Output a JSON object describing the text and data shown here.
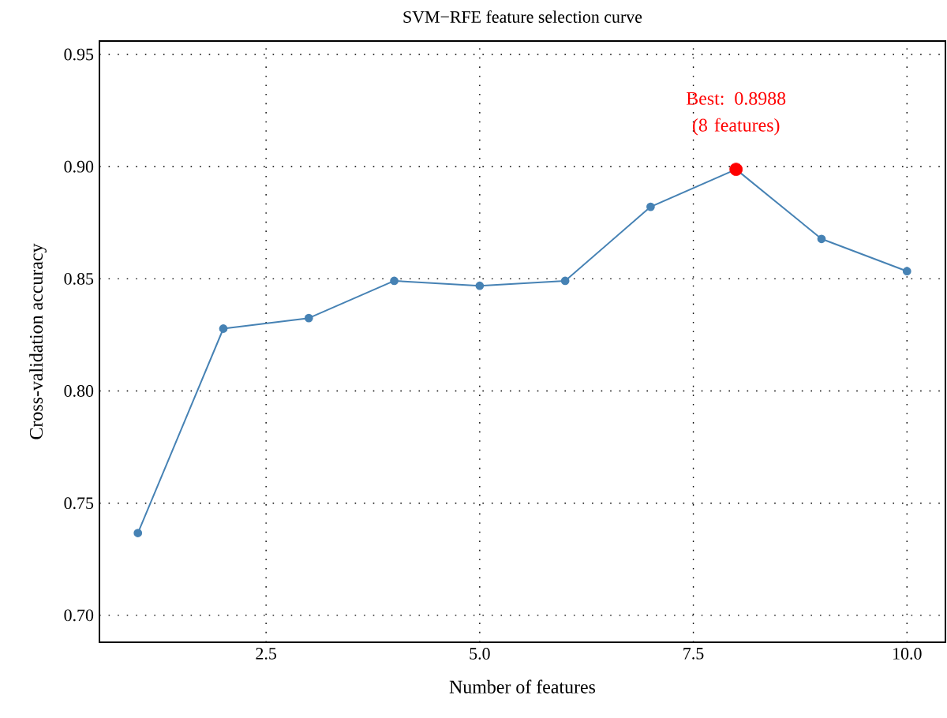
{
  "chart_data": {
    "type": "line",
    "title": "SVM−RFE feature selection curve",
    "xlabel": "Number of features",
    "ylabel": "Cross-validation accuracy",
    "x": [
      1,
      2,
      3,
      4,
      5,
      6,
      7,
      8,
      9,
      10
    ],
    "series": [
      {
        "color": "#4682b4",
        "marker": "circle",
        "values": [
          0.7367,
          0.8278,
          0.8325,
          0.8491,
          0.8469,
          0.8491,
          0.8821,
          0.8988,
          0.8678,
          0.8534
        ]
      },
      {
        "type": "scatter",
        "color": "#ff0000",
        "marker": "circle",
        "x": [
          8
        ],
        "values": [
          0.8988
        ]
      }
    ],
    "xlim": [
      0.55,
      10.45
    ],
    "ylim": [
      0.688,
      0.956
    ],
    "xticks": [
      {
        "value": 2.5,
        "label": "2.5"
      },
      {
        "value": 5,
        "label": "5.0"
      },
      {
        "value": 7.5,
        "label": "7.5"
      },
      {
        "value": 10,
        "label": "10.0"
      }
    ],
    "yticks": [
      {
        "value": 0.7,
        "label": "0.70"
      },
      {
        "value": 0.75,
        "label": "0.75"
      },
      {
        "value": 0.8,
        "label": "0.80"
      },
      {
        "value": 0.85,
        "label": "0.85"
      },
      {
        "value": 0.9,
        "label": "0.90"
      },
      {
        "value": 0.95,
        "label": "0.95"
      }
    ],
    "grid": true,
    "annotations": [
      {
        "text": "Best: 0.8988 (8 features)",
        "x": 8,
        "y": 0.8988
      }
    ]
  }
}
